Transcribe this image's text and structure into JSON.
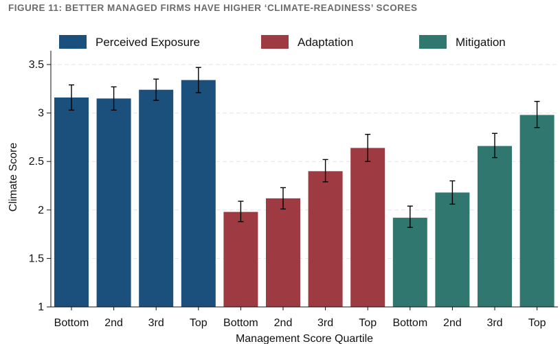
{
  "figure_title": "FIGURE 11: BETTER MANAGED FIRMS HAVE HIGHER ‘CLIMATE-READINESS’ SCORES",
  "colors": {
    "perceived_exposure": "#1b4f7c",
    "adaptation": "#9d3a42",
    "mitigation": "#2f776f",
    "grid": "#e6e6e6",
    "axis": "#111111"
  },
  "chart_data": {
    "type": "bar",
    "title": "FIGURE 11: BETTER MANAGED FIRMS HAVE HIGHER ‘CLIMATE-READINESS’ SCORES",
    "xlabel": "Management Score Quartile",
    "ylabel": "Climate Score",
    "ylim": [
      1,
      3.6
    ],
    "yticks": [
      "1",
      "1.5",
      "2",
      "2.5",
      "3",
      "3.5"
    ],
    "ytick_values": [
      1,
      1.5,
      2,
      2.5,
      3,
      3.5
    ],
    "grid": "horizontal dashed",
    "legend_position": "top",
    "categories": [
      "Bottom",
      "2nd",
      "3rd",
      "Top"
    ],
    "series": [
      {
        "name": "Perceived Exposure",
        "color": "#1b4f7c",
        "values": [
          3.16,
          3.15,
          3.24,
          3.34
        ],
        "ci_low": [
          3.03,
          3.03,
          3.13,
          3.21
        ],
        "ci_high": [
          3.29,
          3.27,
          3.35,
          3.47
        ]
      },
      {
        "name": "Adaptation",
        "color": "#9d3a42",
        "values": [
          1.98,
          2.12,
          2.4,
          2.64
        ],
        "ci_low": [
          1.88,
          2.01,
          2.29,
          2.5
        ],
        "ci_high": [
          2.09,
          2.23,
          2.52,
          2.78
        ]
      },
      {
        "name": "Mitigation",
        "color": "#2f776f",
        "values": [
          1.92,
          2.18,
          2.66,
          2.98
        ],
        "ci_low": [
          1.82,
          2.06,
          2.54,
          2.85
        ],
        "ci_high": [
          2.04,
          2.3,
          2.79,
          3.12
        ]
      }
    ]
  }
}
